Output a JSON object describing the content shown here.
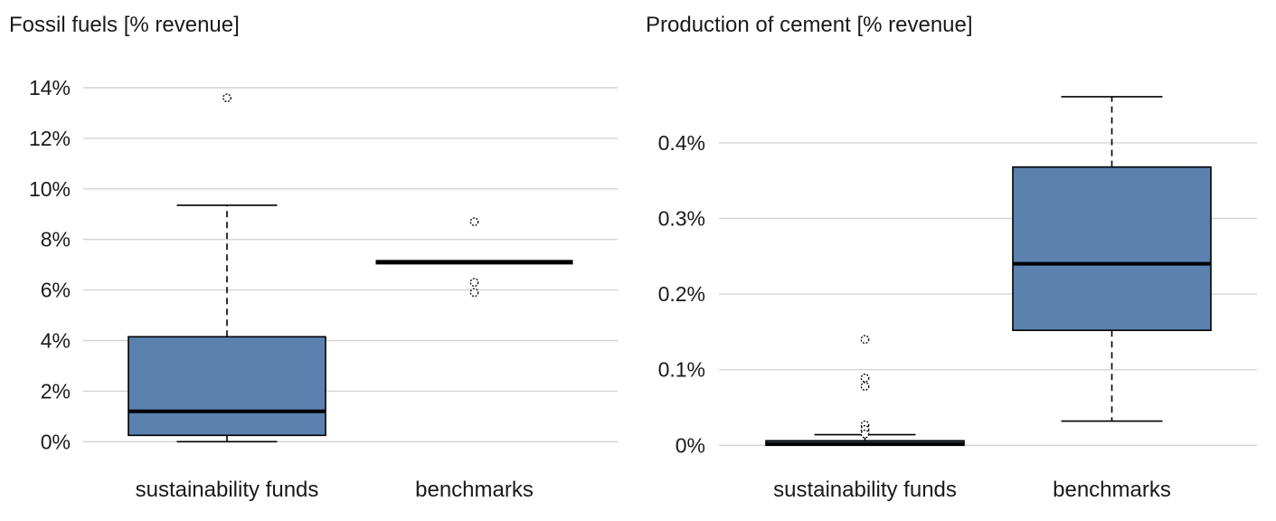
{
  "colors": {
    "background": "#ffffff",
    "box_fill": "#5b81af",
    "box_border": "#000000",
    "median": "#000000",
    "whisker": "#000000",
    "outlier_stroke": "#000000",
    "gridline": "#d3d3d3",
    "text": "#1a1a1a"
  },
  "chart_data": [
    {
      "type": "box",
      "title": "Fossil fuels [% revenue]",
      "categories": [
        "sustainability funds",
        "benchmarks"
      ],
      "ylim": [
        0,
        14.2
      ],
      "grid": true,
      "legend": "none",
      "yticks": [
        {
          "value": 0,
          "label": "0%"
        },
        {
          "value": 2,
          "label": "2%"
        },
        {
          "value": 4,
          "label": "4%"
        },
        {
          "value": 6,
          "label": "6%"
        },
        {
          "value": 8,
          "label": "8%"
        },
        {
          "value": 10,
          "label": "10%"
        },
        {
          "value": 12,
          "label": "12%"
        },
        {
          "value": 14,
          "label": "14%"
        }
      ],
      "series": [
        {
          "category": "sustainability funds",
          "whisker_low": 0.0,
          "q1": 0.25,
          "median": 1.2,
          "q3": 4.15,
          "whisker_high": 9.35,
          "outliers": [
            13.6
          ]
        },
        {
          "category": "benchmarks",
          "whisker_low": 7.1,
          "q1": 7.1,
          "median": 7.1,
          "q3": 7.1,
          "whisker_high": 7.1,
          "outliers": [
            8.7,
            6.3,
            5.9
          ]
        }
      ]
    },
    {
      "type": "box",
      "title": "Production of cement [% revenue]",
      "categories": [
        "sustainability funds",
        "benchmarks"
      ],
      "ylim": [
        0,
        0.47
      ],
      "grid": true,
      "legend": "none",
      "yticks": [
        {
          "value": 0,
          "label": "0%"
        },
        {
          "value": 0.1,
          "label": "0.1%"
        },
        {
          "value": 0.2,
          "label": "0.2%"
        },
        {
          "value": 0.3,
          "label": "0.3%"
        },
        {
          "value": 0.4,
          "label": "0.4%"
        }
      ],
      "series": [
        {
          "category": "sustainability funds",
          "whisker_low": 0.0,
          "q1": 0.0,
          "median": 0.002,
          "q3": 0.006,
          "whisker_high": 0.014,
          "outliers": [
            0.14,
            0.089,
            0.078,
            0.027,
            0.021,
            0.015
          ]
        },
        {
          "category": "benchmarks",
          "whisker_low": 0.032,
          "q1": 0.152,
          "median": 0.24,
          "q3": 0.368,
          "whisker_high": 0.461,
          "outliers": []
        }
      ]
    }
  ]
}
